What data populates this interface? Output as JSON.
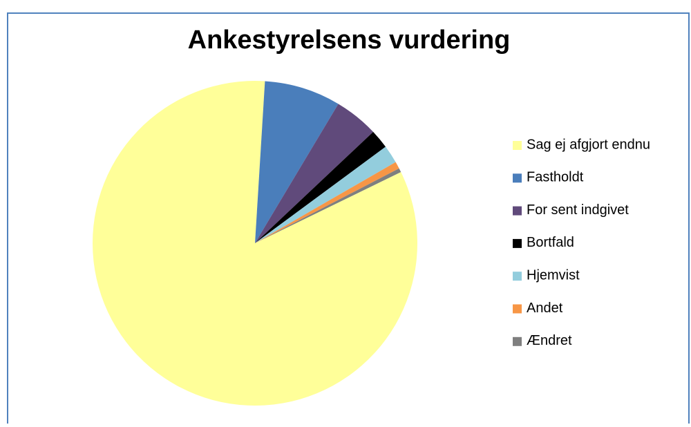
{
  "chart_data": {
    "type": "pie",
    "title": "Ankestyrelsens vurdering",
    "categories": [
      "Sag ej afgjort endnu",
      "Fastholdt",
      "For sent indgivet",
      "Bortfald",
      "Hjemvist",
      "Andet",
      "Ændret"
    ],
    "values": [
      83.2,
      7.6,
      4.4,
      1.9,
      1.8,
      0.7,
      0.4
    ],
    "colors": [
      "#ffff99",
      "#4a7ebb",
      "#604a7b",
      "#000000",
      "#93cddd",
      "#f79646",
      "#7f7f7f"
    ],
    "legend": "right"
  }
}
